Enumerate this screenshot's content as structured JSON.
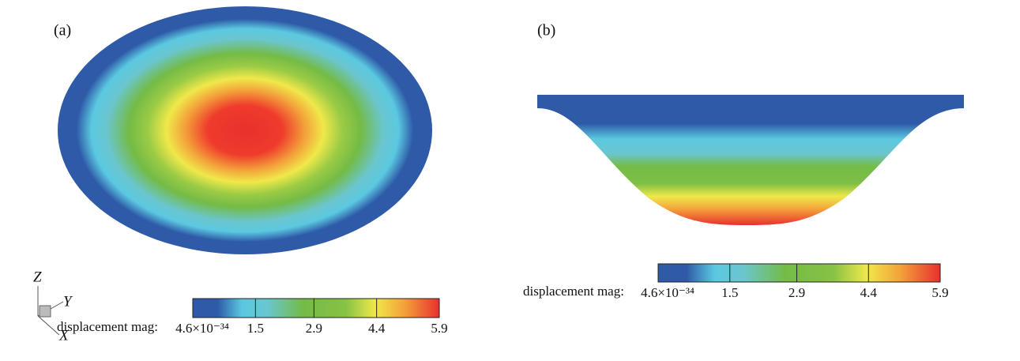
{
  "panels": [
    {
      "label": "(a)",
      "colorbar": {
        "title": "displacement mag:",
        "ticks": [
          {
            "value": 4.6e-34,
            "label": "4.6×10⁻³⁴"
          },
          1.5,
          2.9,
          4.4,
          5.9
        ]
      }
    },
    {
      "label": "(b)",
      "colorbar": {
        "title": "displacement mag:",
        "ticks": [
          {
            "value": 4.6e-34,
            "label": "4.6×10⁻³⁴"
          },
          1.5,
          2.9,
          4.4,
          5.9
        ]
      }
    }
  ],
  "axes": {
    "z": "Z",
    "y": "Y",
    "x": "X"
  }
}
